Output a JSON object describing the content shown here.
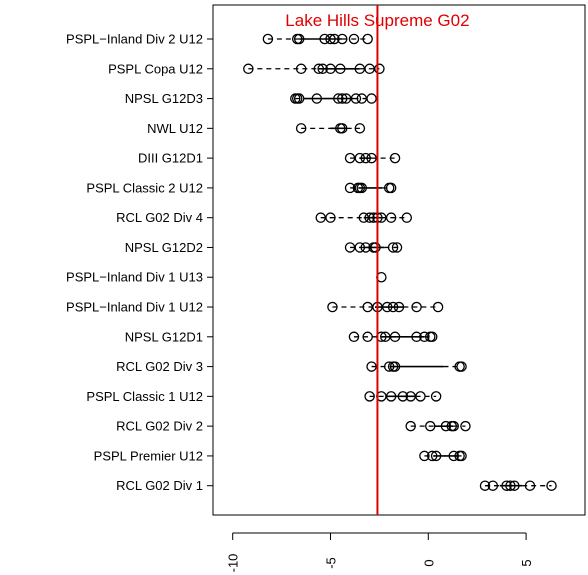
{
  "chart_data": {
    "type": "scatter",
    "title": "",
    "xlabel": "",
    "ylabel": "",
    "xlim": [
      -11,
      7
    ],
    "x_ticks": [
      -10,
      -5,
      0,
      5
    ],
    "x_tick_labels": [
      "-10",
      "-5",
      "0",
      "5"
    ],
    "reference_line": {
      "x": -2.6,
      "label": "Lake Hills Supreme G02",
      "color": "#e00000"
    },
    "categories": [
      "PSPL−Inland Div 2 U12",
      "PSPL Copa U12",
      "NPSL G12D3",
      "NWL U12",
      "DIII G12D1",
      "PSPL Classic 2 U12",
      "RCL G02 Div 4",
      "NPSL G12D2",
      "PSPL−Inland Div 1 U13",
      "PSPL−Inland Div 1 U12",
      "NPSL G12D1",
      "RCL G02 Div 3",
      "PSPL Classic 1 U12",
      "RCL G02 Div 2",
      "PSPL Premier U12",
      "RCL G02 Div 1"
    ],
    "series": [
      {
        "values": [
          -8.2,
          -6.7,
          -6.6,
          -5.3,
          -5.0,
          -4.8,
          -4.4,
          -3.8,
          -3.1
        ]
      },
      {
        "values": [
          -9.2,
          -6.5,
          -5.6,
          -5.4,
          -5.0,
          -4.5,
          -3.5,
          -3.0,
          -2.5
        ]
      },
      {
        "values": [
          -6.8,
          -6.7,
          -6.6,
          -5.7,
          -4.6,
          -4.4,
          -4.2,
          -3.7,
          -3.4,
          -2.9
        ]
      },
      {
        "values": [
          -6.5,
          -4.5,
          -4.4,
          -3.5
        ]
      },
      {
        "values": [
          -4.0,
          -3.5,
          -3.2,
          -2.9,
          -1.7
        ]
      },
      {
        "values": [
          -4.0,
          -3.6,
          -3.5,
          -3.4,
          -2.0,
          -1.9
        ]
      },
      {
        "values": [
          -5.5,
          -5.0,
          -3.3,
          -3.0,
          -2.8,
          -2.6,
          -2.4,
          -1.9,
          -1.1
        ]
      },
      {
        "values": [
          -4.0,
          -3.5,
          -3.2,
          -2.8,
          -2.7,
          -1.8,
          -1.6
        ]
      },
      {
        "values": [
          -2.4
        ]
      },
      {
        "values": [
          -4.9,
          -3.1,
          -2.6,
          -2.1,
          -1.8,
          -1.5,
          -0.6,
          0.5
        ]
      },
      {
        "values": [
          -3.8,
          -3.1,
          -2.4,
          -2.2,
          -1.7,
          -0.6,
          -0.2,
          0.1,
          0.2
        ]
      },
      {
        "values": [
          -2.9,
          -2.0,
          -1.8,
          -1.7,
          1.6,
          1.7
        ]
      },
      {
        "values": [
          -3.0,
          -2.4,
          -1.9,
          -1.3,
          -0.9,
          -0.4,
          0.4
        ]
      },
      {
        "values": [
          -0.9,
          0.1,
          0.9,
          1.2,
          1.3,
          1.9
        ]
      },
      {
        "values": [
          -0.2,
          0.2,
          0.4,
          1.3,
          1.6,
          1.7
        ]
      },
      {
        "values": [
          2.9,
          3.3,
          4.0,
          4.2,
          4.4,
          5.2,
          6.3
        ]
      }
    ]
  }
}
